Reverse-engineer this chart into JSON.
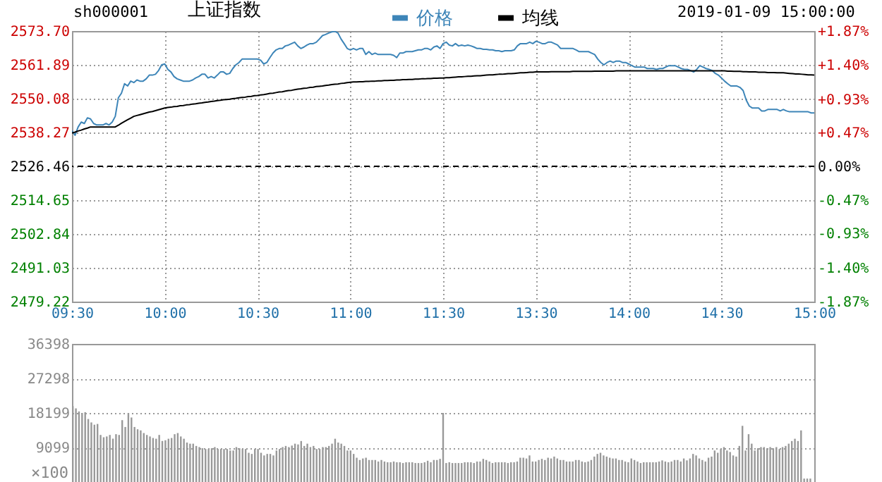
{
  "chart_data": [
    {
      "type": "line",
      "title": "上证指数",
      "annotations": [
        "sh000001",
        "2019-01-09 15:00:00"
      ],
      "legend": "top",
      "grid": true,
      "categories": [
        "09:30",
        null,
        null,
        null,
        null,
        null,
        null,
        null,
        null,
        null,
        null,
        null,
        null,
        null,
        null,
        null,
        null,
        null,
        null,
        null,
        null,
        null,
        null,
        null,
        null,
        null,
        null,
        null,
        null,
        null,
        "10:00",
        null,
        null,
        null,
        null,
        null,
        null,
        null,
        null,
        null,
        null,
        null,
        null,
        null,
        null,
        null,
        null,
        null,
        null,
        null,
        null,
        null,
        null,
        null,
        null,
        null,
        null,
        null,
        null,
        null,
        "10:30",
        null,
        null,
        null,
        null,
        null,
        null,
        null,
        null,
        null,
        null,
        null,
        null,
        null,
        null,
        null,
        null,
        null,
        null,
        null,
        null,
        null,
        null,
        null,
        null,
        null,
        null,
        null,
        null,
        null,
        "11:00",
        null,
        null,
        null,
        null,
        null,
        null,
        null,
        null,
        null,
        null,
        null,
        null,
        null,
        null,
        null,
        null,
        null,
        null,
        null,
        null,
        null,
        null,
        null,
        null,
        null,
        null,
        null,
        null,
        null,
        "11:30",
        null,
        null,
        null,
        null,
        null,
        null,
        null,
        null,
        null,
        null,
        null,
        null,
        null,
        null,
        null,
        null,
        null,
        null,
        null,
        null,
        null,
        null,
        null,
        null,
        null,
        null,
        null,
        null,
        null,
        "13:30",
        null,
        null,
        null,
        null,
        null,
        null,
        null,
        null,
        null,
        null,
        null,
        null,
        null,
        null,
        null,
        null,
        null,
        null,
        null,
        null,
        null,
        null,
        null,
        null,
        null,
        null,
        null,
        null,
        null,
        "14:00",
        null,
        null,
        null,
        null,
        null,
        null,
        null,
        null,
        null,
        null,
        null,
        null,
        null,
        null,
        null,
        null,
        null,
        null,
        null,
        null,
        null,
        null,
        null,
        null,
        null,
        null,
        null,
        null,
        null,
        "14:30",
        null,
        null,
        null,
        null,
        null,
        null,
        null,
        null,
        null,
        null,
        null,
        null,
        null,
        null,
        null,
        null,
        null,
        null,
        null,
        null,
        null,
        null,
        null,
        null,
        null,
        null,
        null,
        null,
        null,
        "15:00"
      ],
      "series": [
        {
          "name": "价格",
          "color": "#3d85b8",
          "values": [
            2538.9,
            2537.3,
            2540.2,
            2541.9,
            2541.4,
            2543.4,
            2543.0,
            2541.4,
            2540.9,
            2540.9,
            2540.9,
            2541.4,
            2540.9,
            2541.9,
            2543.9,
            2550.4,
            2552.0,
            2555.3,
            2554.5,
            2556.2,
            2555.7,
            2556.6,
            2556.2,
            2556.2,
            2557.0,
            2558.3,
            2558.3,
            2558.6,
            2559.9,
            2561.9,
            2562.2,
            2560.3,
            2559.4,
            2557.8,
            2557.0,
            2556.6,
            2556.2,
            2556.2,
            2556.2,
            2556.6,
            2557.3,
            2557.8,
            2558.6,
            2558.6,
            2557.3,
            2557.8,
            2557.3,
            2558.3,
            2559.4,
            2559.4,
            2558.6,
            2558.9,
            2560.6,
            2561.9,
            2562.7,
            2563.9,
            2563.9,
            2563.9,
            2563.9,
            2563.9,
            2563.9,
            2563.5,
            2562.2,
            2562.7,
            2564.4,
            2566.0,
            2567.1,
            2567.6,
            2567.6,
            2568.5,
            2568.8,
            2569.3,
            2569.8,
            2568.5,
            2567.6,
            2568.1,
            2568.8,
            2569.3,
            2569.3,
            2569.8,
            2570.9,
            2572.1,
            2572.5,
            2573.0,
            2573.4,
            2573.6,
            2573.0,
            2570.9,
            2569.3,
            2567.6,
            2567.1,
            2567.6,
            2567.1,
            2567.6,
            2567.6,
            2565.5,
            2566.5,
            2565.5,
            2566.0,
            2565.5,
            2565.5,
            2565.5,
            2565.5,
            2565.5,
            2565.2,
            2564.4,
            2566.0,
            2566.0,
            2566.5,
            2566.5,
            2566.5,
            2566.8,
            2567.1,
            2567.1,
            2567.6,
            2567.6,
            2567.1,
            2568.1,
            2568.5,
            2567.6,
            2569.3,
            2569.8,
            2568.8,
            2568.5,
            2569.3,
            2568.5,
            2568.8,
            2568.5,
            2568.8,
            2568.5,
            2568.1,
            2567.6,
            2567.6,
            2567.3,
            2567.3,
            2567.1,
            2567.1,
            2566.8,
            2566.8,
            2566.5,
            2566.8,
            2566.8,
            2566.8,
            2567.1,
            2568.5,
            2569.3,
            2569.3,
            2569.3,
            2569.8,
            2569.3,
            2570.1,
            2569.8,
            2569.3,
            2569.3,
            2569.8,
            2569.8,
            2569.3,
            2568.8,
            2567.6,
            2567.6,
            2567.6,
            2567.6,
            2567.6,
            2567.1,
            2566.5,
            2566.5,
            2566.5,
            2566.5,
            2566.0,
            2565.5,
            2563.9,
            2562.7,
            2561.9,
            2562.7,
            2563.2,
            2562.7,
            2563.2,
            2563.2,
            2562.7,
            2562.7,
            2562.2,
            2561.6,
            2561.1,
            2561.1,
            2561.1,
            2561.1,
            2560.6,
            2560.6,
            2560.6,
            2560.3,
            2560.6,
            2560.6,
            2561.1,
            2561.6,
            2561.6,
            2561.6,
            2561.1,
            2560.6,
            2560.3,
            2560.3,
            2559.9,
            2559.4,
            2560.3,
            2561.6,
            2561.1,
            2560.6,
            2560.3,
            2559.9,
            2558.9,
            2558.3,
            2557.3,
            2556.2,
            2555.3,
            2554.5,
            2554.5,
            2554.5,
            2554.0,
            2552.9,
            2549.6,
            2547.5,
            2546.8,
            2546.8,
            2546.8,
            2545.8,
            2545.8,
            2546.3,
            2546.3,
            2546.3,
            2546.3,
            2545.8,
            2546.3,
            2545.8,
            2545.5,
            2545.5,
            2545.5,
            2545.5,
            2545.5,
            2545.5,
            2545.5,
            2545.1,
            2545.1
          ]
        },
        {
          "name": "均线",
          "color": "#000000",
          "values": [
            2538.1,
            2538.4,
            2538.8,
            2539.1,
            2539.5,
            2539.8,
            2540.2,
            2540.2,
            2540.2,
            2540.2,
            2540.2,
            2540.2,
            2540.2,
            2540.2,
            2540.2,
            2540.8,
            2541.5,
            2542.1,
            2542.7,
            2543.3,
            2543.9,
            2544.2,
            2544.5,
            2544.8,
            2545.1,
            2545.4,
            2545.6,
            2545.9,
            2546.2,
            2546.5,
            2546.8,
            2547.0,
            2547.1,
            2547.3,
            2547.4,
            2547.6,
            2547.7,
            2547.9,
            2548.0,
            2548.2,
            2548.3,
            2548.5,
            2548.6,
            2548.8,
            2548.9,
            2549.1,
            2549.2,
            2549.4,
            2549.5,
            2549.7,
            2549.8,
            2549.9,
            2550.1,
            2550.2,
            2550.4,
            2550.5,
            2550.6,
            2550.8,
            2550.9,
            2551.1,
            2551.2,
            2551.4,
            2551.5,
            2551.7,
            2551.9,
            2552.0,
            2552.2,
            2552.4,
            2552.5,
            2552.7,
            2552.9,
            2553.0,
            2553.2,
            2553.4,
            2553.5,
            2553.7,
            2553.8,
            2554.0,
            2554.1,
            2554.3,
            2554.4,
            2554.5,
            2554.7,
            2554.8,
            2555.0,
            2555.1,
            2555.2,
            2555.4,
            2555.5,
            2555.7,
            2555.8,
            2555.9,
            2555.9,
            2556.0,
            2556.0,
            2556.1,
            2556.1,
            2556.2,
            2556.2,
            2556.3,
            2556.3,
            2556.4,
            2556.4,
            2556.5,
            2556.5,
            2556.6,
            2556.6,
            2556.7,
            2556.7,
            2556.8,
            2556.8,
            2556.9,
            2556.9,
            2557.0,
            2557.0,
            2557.1,
            2557.1,
            2557.2,
            2557.2,
            2557.3,
            2557.3,
            2557.4,
            2557.4,
            2557.5,
            2557.6,
            2557.7,
            2557.7,
            2557.8,
            2557.9,
            2557.9,
            2558.0,
            2558.1,
            2558.1,
            2558.2,
            2558.3,
            2558.4,
            2558.4,
            2558.5,
            2558.6,
            2558.6,
            2558.7,
            2558.8,
            2558.8,
            2558.9,
            2559.0,
            2559.1,
            2559.1,
            2559.2,
            2559.3,
            2559.3,
            2559.4,
            2559.4,
            2559.4,
            2559.4,
            2559.4,
            2559.5,
            2559.5,
            2559.5,
            2559.5,
            2559.5,
            2559.5,
            2559.5,
            2559.6,
            2559.6,
            2559.6,
            2559.6,
            2559.6,
            2559.6,
            2559.6,
            2559.7,
            2559.7,
            2559.7,
            2559.7,
            2559.7,
            2559.7,
            2559.7,
            2559.8,
            2559.8,
            2559.8,
            2559.8,
            2559.8,
            2559.8,
            2559.8,
            2559.8,
            2559.8,
            2559.8,
            2559.8,
            2559.8,
            2559.8,
            2559.8,
            2559.8,
            2559.8,
            2559.8,
            2559.8,
            2559.8,
            2559.8,
            2559.8,
            2559.8,
            2559.8,
            2559.8,
            2559.8,
            2559.8,
            2559.8,
            2559.8,
            2559.8,
            2559.8,
            2559.8,
            2559.8,
            2559.8,
            2559.8,
            2559.8,
            2559.8,
            2559.7,
            2559.7,
            2559.6,
            2559.6,
            2559.6,
            2559.5,
            2559.5,
            2559.4,
            2559.4,
            2559.4,
            2559.3,
            2559.3,
            2559.3,
            2559.2,
            2559.2,
            2559.2,
            2559.1,
            2559.1,
            2559.1,
            2559.0,
            2558.9,
            2558.8,
            2558.7,
            2558.7,
            2558.6,
            2558.5,
            2558.4,
            2558.4,
            2558.3
          ]
        }
      ],
      "ylim": [
        2479.22,
        2573.7
      ],
      "yticks": [
        2479.22,
        2491.03,
        2502.84,
        2514.65,
        2526.46,
        2538.27,
        2550.08,
        2561.89,
        {
          "value": 2573.7,
          "label": "2573.70"
        }
      ],
      "y2lim": [
        -1.87,
        1.87
      ],
      "y2ticks": [
        {
          "value": -1.87,
          "label": "-1.87%"
        },
        {
          "value": -1.4,
          "label": "-1.40%"
        },
        {
          "value": -0.93,
          "label": "-0.93%"
        },
        {
          "value": -0.47,
          "label": "-0.47%"
        },
        {
          "value": 0,
          "label": "0.00%"
        },
        {
          "value": 0.47,
          "label": "+0.47%"
        },
        {
          "value": 0.93,
          "label": "+0.93%"
        },
        {
          "value": 1.4,
          "label": "+1.40%"
        },
        {
          "value": 1.87,
          "label": "+1.87%"
        }
      ],
      "ref_lines": [
        {
          "axis": "y",
          "value": 2526.46,
          "color": "#000000",
          "line_style": "dashed"
        }
      ]
    },
    {
      "type": "bar",
      "color": "#999999",
      "grid": "y",
      "tick_labels": "y",
      "annotations": [
        "×100"
      ],
      "categories": [
        null,
        null,
        null,
        null,
        null,
        null,
        null,
        null,
        null,
        null,
        null,
        null,
        null,
        null,
        null,
        null,
        null,
        null,
        null,
        null,
        null,
        null,
        null,
        null,
        null,
        null,
        null,
        null,
        null,
        null,
        null,
        null,
        null,
        null,
        null,
        null,
        null,
        null,
        null,
        null,
        null,
        null,
        null,
        null,
        null,
        null,
        null,
        null,
        null,
        null,
        null,
        null,
        null,
        null,
        null,
        null,
        null,
        null,
        null,
        null,
        null,
        null,
        null,
        null,
        null,
        null,
        null,
        null,
        null,
        null,
        null,
        null,
        null,
        null,
        null,
        null,
        null,
        null,
        null,
        null,
        null,
        null,
        null,
        null,
        null,
        null,
        null,
        null,
        null,
        null,
        null,
        null,
        null,
        null,
        null,
        null,
        null,
        null,
        null,
        null,
        null,
        null,
        null,
        null,
        null,
        null,
        null,
        null,
        null,
        null,
        null,
        null,
        null,
        null,
        null,
        null,
        null,
        null,
        null,
        null,
        null,
        null,
        null,
        null,
        null,
        null,
        null,
        null,
        null,
        null,
        null,
        null,
        null,
        null,
        null,
        null,
        null,
        null,
        null,
        null,
        null,
        null,
        null,
        null,
        null,
        null,
        null,
        null,
        null,
        null,
        null,
        null,
        null,
        null,
        null,
        null,
        null,
        null,
        null,
        null,
        null,
        null,
        null,
        null,
        null,
        null,
        null,
        null,
        null,
        null,
        null,
        null,
        null,
        null,
        null,
        null,
        null,
        null,
        null,
        null,
        null,
        null,
        null,
        null,
        null,
        null,
        null,
        null,
        null,
        null,
        null,
        null,
        null,
        null,
        null,
        null,
        null,
        null,
        null,
        null,
        null,
        null,
        null,
        null,
        null,
        null,
        null,
        null,
        null,
        null,
        null,
        null,
        null,
        null,
        null,
        null,
        null,
        null,
        null,
        null,
        null,
        null,
        null,
        null,
        null,
        null,
        null,
        null,
        null,
        null,
        null,
        null,
        null,
        null,
        null,
        null,
        null,
        null,
        null,
        null,
        null
      ],
      "values": [
        20000,
        19400,
        18600,
        18200,
        18400,
        16600,
        15700,
        15100,
        15300,
        12400,
        11800,
        12000,
        12400,
        11400,
        12600,
        12400,
        16300,
        14500,
        18200,
        17000,
        14500,
        13900,
        13600,
        12900,
        12400,
        12000,
        11600,
        11400,
        12400,
        10800,
        11000,
        11400,
        11600,
        12600,
        12900,
        12000,
        11400,
        10400,
        10100,
        10100,
        9500,
        9200,
        8900,
        8700,
        8700,
        8900,
        9200,
        8700,
        8700,
        8700,
        8700,
        8300,
        8300,
        9200,
        8900,
        8700,
        8700,
        7700,
        7400,
        8700,
        8700,
        7700,
        7000,
        7400,
        7400,
        7000,
        8300,
        8700,
        9200,
        9500,
        9200,
        9600,
        10100,
        9900,
        10800,
        9500,
        10100,
        9200,
        9500,
        8700,
        8700,
        9200,
        9200,
        9500,
        10100,
        11400,
        10400,
        10100,
        9500,
        8300,
        8300,
        7400,
        6400,
        5800,
        6200,
        6400,
        5800,
        5800,
        5800,
        5400,
        5800,
        5400,
        5200,
        5200,
        5400,
        5200,
        5200,
        5000,
        5200,
        5200,
        5200,
        5000,
        5000,
        5000,
        5200,
        5600,
        5200,
        5800,
        5800,
        6100,
        18200,
        5000,
        5200,
        5000,
        5000,
        5000,
        5000,
        5200,
        5200,
        5200,
        5000,
        5400,
        5400,
        6100,
        5800,
        5400,
        5000,
        5200,
        5200,
        5200,
        5200,
        5000,
        5200,
        5200,
        5400,
        6400,
        6400,
        6200,
        7000,
        5400,
        5400,
        5800,
        6100,
        5800,
        6400,
        6200,
        6700,
        6200,
        5800,
        5800,
        5400,
        5400,
        5400,
        5800,
        5800,
        5400,
        5200,
        5400,
        5800,
        6700,
        7400,
        7700,
        7000,
        6700,
        6400,
        6200,
        6200,
        5800,
        5800,
        5400,
        5200,
        6200,
        5800,
        5400,
        5000,
        5200,
        5200,
        5200,
        5200,
        5200,
        5400,
        5700,
        5400,
        5200,
        5400,
        5800,
        5800,
        5400,
        6200,
        5700,
        6200,
        7400,
        7000,
        6200,
        5800,
        5400,
        6400,
        6700,
        8300,
        7700,
        8700,
        9200,
        8300,
        7900,
        7000,
        6700,
        9500,
        14800,
        8300,
        12600,
        10100,
        8300,
        8900,
        9200,
        9200,
        8900,
        9200,
        8900,
        9200,
        8700,
        9200,
        9500,
        10100,
        10800,
        11400,
        10800,
        13600,
        900,
        900,
        900,
        null
      ],
      "ylim": [
        0,
        36398
      ],
      "yticks": [
        9099,
        18199,
        27298,
        36398
      ]
    }
  ]
}
